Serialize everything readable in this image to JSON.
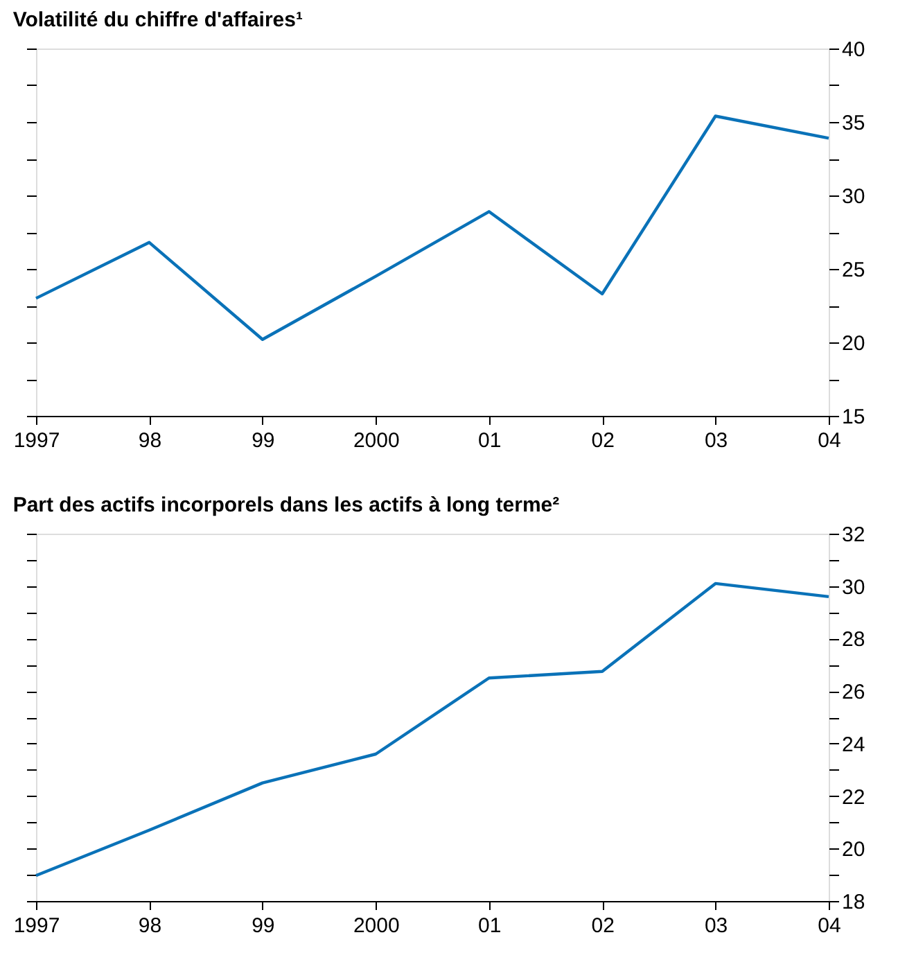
{
  "chart_data": [
    {
      "type": "line",
      "title": "Volatilité du chiffre d'affaires¹",
      "categories": [
        "1997",
        "98",
        "99",
        "2000",
        "01",
        "02",
        "03",
        "04"
      ],
      "series": [
        {
          "color": "#0a72b8",
          "values": [
            23.0,
            26.8,
            20.2,
            24.5,
            28.9,
            23.3,
            35.4,
            33.9
          ]
        }
      ],
      "ylim": [
        15,
        40
      ],
      "yticks": [
        15,
        {
          "value": 17.5,
          "label": null
        },
        20,
        {
          "value": 22.5,
          "label": null
        },
        25,
        {
          "value": 27.5,
          "label": null
        },
        30,
        {
          "value": 32.5,
          "label": null
        },
        35,
        {
          "value": 37.5,
          "label": null
        },
        40
      ],
      "grid": false,
      "marker": "none",
      "line_style": "solid"
    },
    {
      "type": "line",
      "title": "Part des actifs incorporels dans les actifs à long terme²",
      "categories": [
        "1997",
        "98",
        "99",
        "2000",
        "01",
        "02",
        "03",
        "04"
      ],
      "series": [
        {
          "color": "#0a72b8",
          "values": [
            18.97,
            20.7,
            22.5,
            23.6,
            26.5,
            26.75,
            30.1,
            29.6
          ]
        }
      ],
      "ylim": [
        18,
        32
      ],
      "yticks": [
        18,
        {
          "value": 19,
          "label": null
        },
        20,
        {
          "value": 21,
          "label": null
        },
        22,
        {
          "value": 23,
          "label": null
        },
        24,
        {
          "value": 25,
          "label": null
        },
        26,
        {
          "value": 27,
          "label": null
        },
        28,
        {
          "value": 29,
          "label": null
        },
        30,
        {
          "value": 31,
          "label": null
        },
        32
      ],
      "grid": false,
      "marker": "none",
      "line_style": "solid"
    }
  ]
}
